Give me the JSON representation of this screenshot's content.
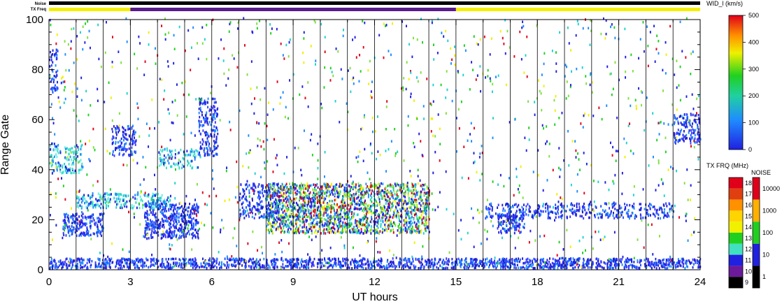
{
  "chart_data": {
    "type": "heatmap",
    "xlabel": "UT hours",
    "ylabel": "Range Gate",
    "xlim": [
      0,
      24
    ],
    "ylim": [
      0,
      100
    ],
    "x_ticks": [
      "0",
      "3",
      "6",
      "9",
      "12",
      "15",
      "18",
      "21",
      "24"
    ],
    "y_ticks": [
      "0",
      "20",
      "40",
      "60",
      "80",
      "100"
    ],
    "scan_boundaries_hours": [
      1,
      2,
      3,
      4,
      5,
      6,
      7,
      8,
      9,
      10,
      11,
      12,
      13,
      14,
      15,
      16,
      17,
      18,
      19,
      20,
      21,
      22,
      23
    ],
    "top_strips": {
      "noise_label": "Noise",
      "txfreq_label": "TX Freq",
      "txfreq_segments": [
        {
          "start": 0,
          "end": 3,
          "color": "#f5f000"
        },
        {
          "start": 3,
          "end": 15,
          "color": "#5a1a8a"
        },
        {
          "start": 15,
          "end": 24,
          "color": "#f5f000"
        }
      ]
    },
    "colorbar_width": {
      "title": "WID_l (km/s)",
      "ticks": [
        "500",
        "400",
        "300",
        "200",
        "100",
        "0"
      ],
      "range": [
        0,
        500
      ]
    },
    "colorbar_txfreq": {
      "title": "TX FRQ (MHz)",
      "ticks": [
        "18",
        "17",
        "16",
        "15",
        "14",
        "13",
        "12",
        "11",
        "10",
        "9"
      ],
      "colors": [
        "#e0001a",
        "#e04010",
        "#ff9000",
        "#ffd400",
        "#f0f000",
        "#20d020",
        "#40e0c0",
        "#2020e0",
        "#6a1a9a",
        "#000000"
      ]
    },
    "colorbar_noise": {
      "title": "NOISE",
      "ticks": [
        "10000",
        "1000",
        "100",
        "10",
        "1"
      ],
      "colors": [
        "#e0001a",
        "#ffb000",
        "#20d020",
        "#2020e0",
        "#000000"
      ]
    },
    "regions": [
      {
        "t0": 0.0,
        "t1": 24.0,
        "g0": 0,
        "g1": 4,
        "density": 0.85,
        "tone": "blue"
      },
      {
        "t0": 8.0,
        "t1": 14.0,
        "g0": 14,
        "g1": 34,
        "density": 0.8,
        "tone": "mixed"
      },
      {
        "t0": 0.5,
        "t1": 2.0,
        "g0": 13,
        "g1": 22,
        "density": 0.7,
        "tone": "blue"
      },
      {
        "t0": 3.5,
        "t1": 5.5,
        "g0": 12,
        "g1": 26,
        "density": 0.75,
        "tone": "blue"
      },
      {
        "t0": 2.3,
        "t1": 3.2,
        "g0": 45,
        "g1": 57,
        "density": 0.55,
        "tone": "blue"
      },
      {
        "t0": 5.5,
        "t1": 6.2,
        "g0": 45,
        "g1": 68,
        "density": 0.55,
        "tone": "blue"
      },
      {
        "t0": 0.0,
        "t1": 1.2,
        "g0": 38,
        "g1": 50,
        "density": 0.45,
        "tone": "cyan"
      },
      {
        "t0": 0.0,
        "t1": 0.3,
        "g0": 70,
        "g1": 88,
        "density": 0.5,
        "tone": "blue"
      },
      {
        "t0": 1.0,
        "t1": 4.5,
        "g0": 24,
        "g1": 30,
        "density": 0.55,
        "tone": "cyan"
      },
      {
        "t0": 16.5,
        "t1": 17.5,
        "g0": 14,
        "g1": 22,
        "density": 0.7,
        "tone": "blue"
      },
      {
        "t0": 16.0,
        "t1": 23.0,
        "g0": 20,
        "g1": 26,
        "density": 0.45,
        "tone": "blue"
      },
      {
        "t0": 23.0,
        "t1": 24.0,
        "g0": 50,
        "g1": 62,
        "density": 0.55,
        "tone": "blue"
      },
      {
        "t0": 7.0,
        "t1": 8.5,
        "g0": 20,
        "g1": 34,
        "density": 0.45,
        "tone": "blue"
      },
      {
        "t0": 4.0,
        "t1": 5.5,
        "g0": 40,
        "g1": 48,
        "density": 0.4,
        "tone": "cyan"
      },
      {
        "t0": 0.0,
        "t1": 24.0,
        "g0": 0,
        "g1": 100,
        "density": 0.025,
        "tone": "mixed"
      }
    ]
  }
}
